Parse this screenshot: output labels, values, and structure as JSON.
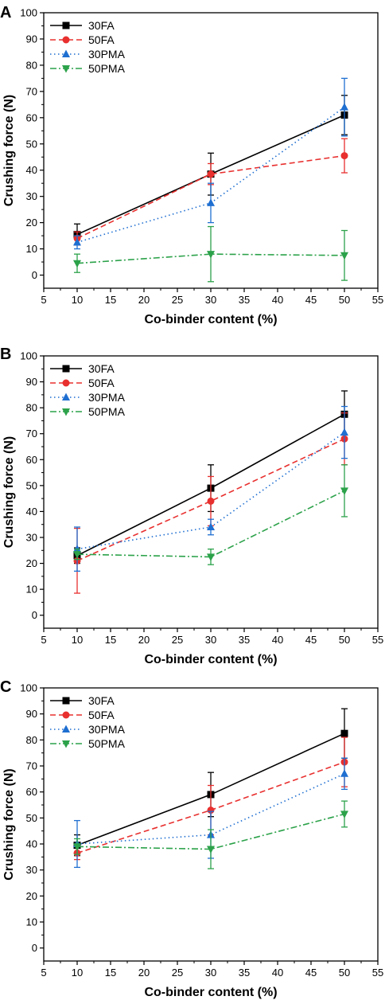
{
  "chart_data": [
    {
      "type": "line",
      "panel": "A",
      "xlabel": "Co-binder content (%)",
      "ylabel": "Crushing force (N)",
      "xlim": [
        5,
        55
      ],
      "ylim": [
        -5,
        100
      ],
      "x_ticks": [
        5,
        10,
        15,
        20,
        25,
        30,
        35,
        40,
        45,
        50,
        55
      ],
      "y_ticks": [
        0,
        10,
        20,
        30,
        40,
        50,
        60,
        70,
        80,
        90,
        100
      ],
      "grid": false,
      "legend_position": "top-left",
      "x": [
        10,
        30,
        50
      ],
      "series": [
        {
          "name": "30FA",
          "color": "#000000",
          "marker": "square",
          "dash": "solid",
          "values": [
            15.5,
            38.5,
            61.0
          ],
          "errors": [
            4.0,
            8.0,
            7.5
          ]
        },
        {
          "name": "50FA",
          "color": "#e8302f",
          "marker": "circle",
          "dash": "dashed",
          "values": [
            14.0,
            38.5,
            45.5
          ],
          "errors": [
            2.5,
            4.0,
            6.5
          ]
        },
        {
          "name": "30PMA",
          "color": "#1f6fd1",
          "marker": "triangle-up",
          "dash": "dotted",
          "values": [
            12.5,
            27.5,
            64.0
          ],
          "errors": [
            2.5,
            7.5,
            11.0
          ]
        },
        {
          "name": "50PMA",
          "color": "#2ca24a",
          "marker": "triangle-down",
          "dash": "dashdot",
          "values": [
            4.5,
            8.0,
            7.5
          ],
          "errors": [
            3.5,
            10.5,
            9.5
          ]
        }
      ]
    },
    {
      "type": "line",
      "panel": "B",
      "xlabel": "Co-binder content (%)",
      "ylabel": "Crushing force (N)",
      "xlim": [
        5,
        55
      ],
      "ylim": [
        -5,
        100
      ],
      "x_ticks": [
        5,
        10,
        15,
        20,
        25,
        30,
        35,
        40,
        45,
        50,
        55
      ],
      "y_ticks": [
        0,
        10,
        20,
        30,
        40,
        50,
        60,
        70,
        80,
        90,
        100
      ],
      "grid": false,
      "legend_position": "top-left",
      "x": [
        10,
        30,
        50
      ],
      "series": [
        {
          "name": "30FA",
          "color": "#000000",
          "marker": "square",
          "dash": "solid",
          "values": [
            23.0,
            49.0,
            77.5
          ],
          "errors": [
            3.0,
            9.0,
            9.0
          ]
        },
        {
          "name": "50FA",
          "color": "#e8302f",
          "marker": "circle",
          "dash": "dashed",
          "values": [
            21.0,
            44.0,
            68.0
          ],
          "errors": [
            12.5,
            9.5,
            10.0
          ]
        },
        {
          "name": "30PMA",
          "color": "#1f6fd1",
          "marker": "triangle-up",
          "dash": "dotted",
          "values": [
            25.5,
            34.0,
            70.5
          ],
          "errors": [
            8.5,
            3.0,
            10.0
          ]
        },
        {
          "name": "50PMA",
          "color": "#2ca24a",
          "marker": "triangle-down",
          "dash": "dashdot",
          "values": [
            23.5,
            22.5,
            48.0
          ],
          "errors": [
            2.0,
            3.0,
            10.0
          ]
        }
      ]
    },
    {
      "type": "line",
      "panel": "C",
      "xlabel": "Co-binder content (%)",
      "ylabel": "Crushing force (N)",
      "xlim": [
        5,
        55
      ],
      "ylim": [
        -5,
        100
      ],
      "x_ticks": [
        5,
        10,
        15,
        20,
        25,
        30,
        35,
        40,
        45,
        50,
        55
      ],
      "y_ticks": [
        0,
        10,
        20,
        30,
        40,
        50,
        60,
        70,
        80,
        90,
        100
      ],
      "grid": false,
      "legend_position": "top-left",
      "x": [
        10,
        30,
        50
      ],
      "series": [
        {
          "name": "30FA",
          "color": "#000000",
          "marker": "square",
          "dash": "solid",
          "values": [
            39.5,
            59.0,
            82.5
          ],
          "errors": [
            4.0,
            8.5,
            9.5
          ]
        },
        {
          "name": "50FA",
          "color": "#e8302f",
          "marker": "circle",
          "dash": "dashed",
          "values": [
            36.5,
            53.0,
            71.5
          ],
          "errors": [
            2.5,
            9.5,
            9.5
          ]
        },
        {
          "name": "30PMA",
          "color": "#1f6fd1",
          "marker": "triangle-up",
          "dash": "dotted",
          "values": [
            40.0,
            43.5,
            67.0
          ],
          "errors": [
            9.0,
            9.0,
            6.0
          ]
        },
        {
          "name": "50PMA",
          "color": "#2ca24a",
          "marker": "triangle-down",
          "dash": "dashdot",
          "values": [
            39.0,
            38.0,
            51.5
          ],
          "errors": [
            3.0,
            7.5,
            5.0
          ]
        }
      ]
    }
  ]
}
